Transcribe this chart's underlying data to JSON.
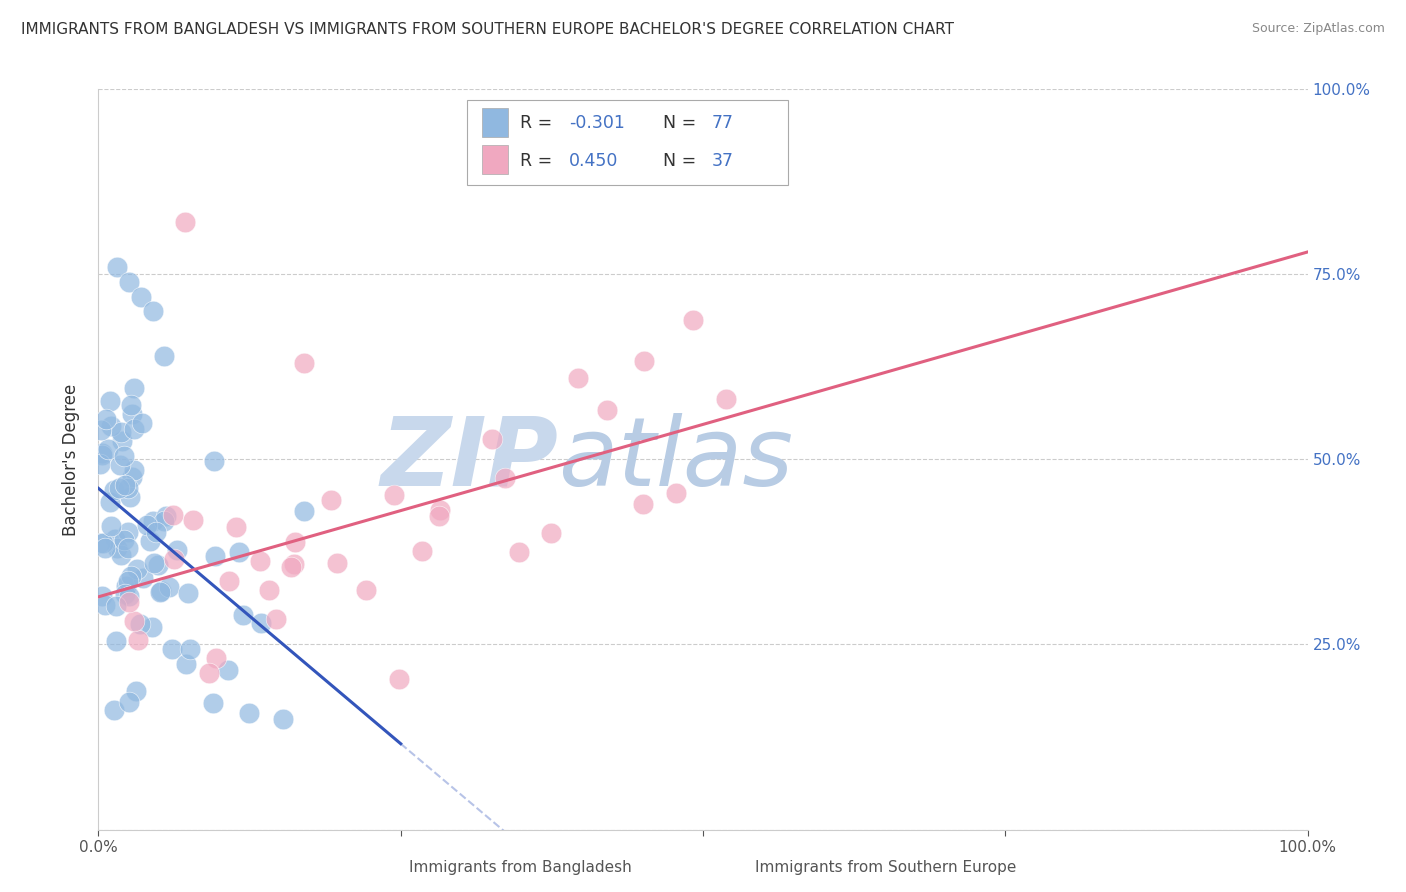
{
  "title": "IMMIGRANTS FROM BANGLADESH VS IMMIGRANTS FROM SOUTHERN EUROPE BACHELOR'S DEGREE CORRELATION CHART",
  "source": "Source: ZipAtlas.com",
  "ylabel": "Bachelor's Degree",
  "blue_color": "#90b8e0",
  "pink_color": "#f0a8c0",
  "blue_line_color": "#3355bb",
  "pink_line_color": "#e06080",
  "watermark_color": "#d0dff0",
  "background_color": "#ffffff",
  "title_fontsize": 11,
  "source_fontsize": 9,
  "blue_R": -0.301,
  "blue_N": 77,
  "pink_R": 0.45,
  "pink_N": 37,
  "right_ytick_labels": [
    "25.0%",
    "50.0%",
    "75.0%",
    "100.0%"
  ],
  "right_ytick_color": "#4472c4"
}
